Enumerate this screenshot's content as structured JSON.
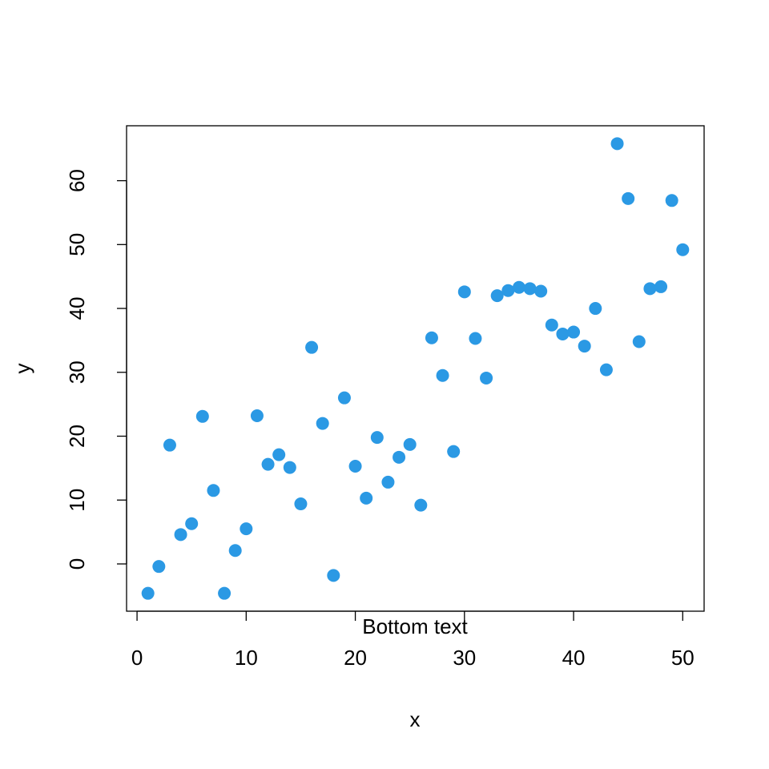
{
  "chart_data": {
    "type": "scatter",
    "x_label": "x",
    "y_label": "y",
    "annotation": "Bottom text",
    "color": "#2b99e4",
    "x": [
      1,
      2,
      3,
      4,
      5,
      6,
      7,
      8,
      9,
      10,
      11,
      12,
      13,
      14,
      15,
      16,
      17,
      18,
      19,
      20,
      21,
      22,
      23,
      24,
      25,
      26,
      27,
      28,
      29,
      30,
      31,
      32,
      33,
      34,
      35,
      36,
      37,
      38,
      39,
      40,
      41,
      42,
      43,
      44,
      45,
      46,
      47,
      48,
      49,
      50
    ],
    "values": [
      -4.6,
      -0.4,
      18.6,
      4.6,
      6.3,
      23.1,
      11.5,
      -4.6,
      2.1,
      5.5,
      23.2,
      15.6,
      17.1,
      15.1,
      9.4,
      33.9,
      22.0,
      -1.8,
      26.0,
      15.3,
      10.3,
      19.8,
      12.8,
      16.7,
      18.7,
      9.2,
      35.4,
      29.5,
      17.6,
      42.6,
      35.3,
      29.1,
      42.0,
      42.8,
      43.3,
      43.1,
      42.7,
      37.4,
      36.0,
      36.3,
      34.1,
      40.0,
      30.4,
      65.8,
      57.2,
      34.8,
      43.1,
      43.4,
      56.9,
      49.2
    ],
    "xlim": [
      -0.96,
      51.96
    ],
    "xticks": [
      0,
      10,
      20,
      30,
      40,
      50
    ],
    "ylim": [
      -7.4,
      68.6
    ],
    "yticks": [
      0,
      10,
      20,
      30,
      40,
      50,
      60
    ],
    "grid": false
  }
}
